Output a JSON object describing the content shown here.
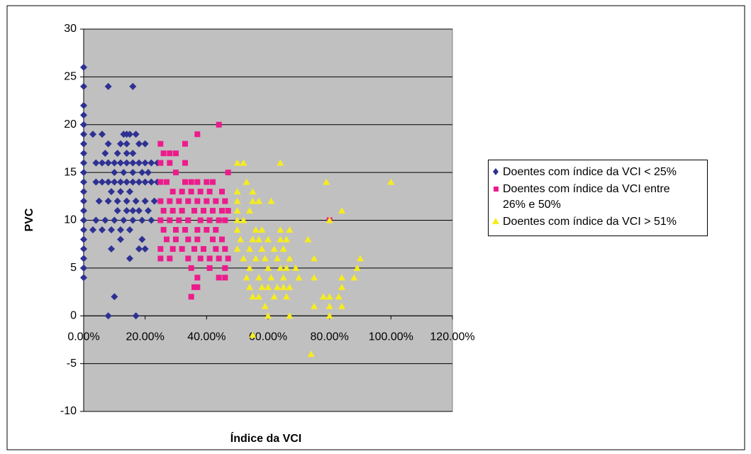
{
  "chart_data": {
    "type": "scatter",
    "x_label": "Índice da VCI",
    "y_label": "PVC",
    "xlim": [
      0,
      120
    ],
    "xticks": [
      {
        "value": 0,
        "label": "0.00%"
      },
      {
        "value": 20,
        "label": "20.00%"
      },
      {
        "value": 40,
        "label": "40.00%"
      },
      {
        "value": 60,
        "label": "60.00%"
      },
      {
        "value": 80,
        "label": "80.00%"
      },
      {
        "value": 100,
        "label": "100.00%"
      },
      {
        "value": 120,
        "label": "120.00%"
      }
    ],
    "ylim": [
      -10,
      30
    ],
    "yticks": [
      -10,
      -5,
      0,
      5,
      10,
      15,
      20,
      25,
      30
    ],
    "grid": true,
    "legend": "right",
    "series": [
      {
        "name": "Doentes com índice da VCI < 25%",
        "color": "#2e3192",
        "marker": "diamond",
        "x": [
          0,
          0,
          0,
          0,
          0,
          0,
          0,
          0,
          0,
          0,
          0,
          0,
          0,
          0,
          0,
          0,
          0,
          0,
          0,
          0,
          0,
          8,
          16,
          3,
          6,
          4,
          6,
          8,
          10,
          12,
          14,
          16,
          18,
          20,
          22,
          24,
          4,
          6,
          8,
          10,
          12,
          14,
          16,
          18,
          20,
          22,
          24,
          5,
          8,
          11,
          14,
          17,
          20,
          23,
          4,
          7,
          10,
          13,
          16,
          19,
          22,
          6,
          9,
          12,
          15,
          18,
          20,
          9,
          12,
          15,
          13,
          14,
          15,
          17,
          12,
          14,
          18,
          20,
          7,
          11,
          14,
          16,
          8,
          10,
          13,
          16,
          19,
          21,
          9,
          12,
          15,
          18,
          11,
          14,
          16,
          21,
          10,
          8,
          17,
          3,
          19
        ],
        "y": [
          4,
          5,
          6,
          7,
          8,
          9,
          10,
          11,
          12,
          13,
          14,
          15,
          16,
          17,
          18,
          19,
          20,
          21,
          22,
          24,
          26,
          24,
          24,
          19,
          19,
          16,
          16,
          16,
          16,
          16,
          16,
          16,
          16,
          16,
          16,
          16,
          14,
          14,
          14,
          14,
          14,
          14,
          14,
          14,
          14,
          14,
          14,
          12,
          12,
          12,
          12,
          12,
          12,
          12,
          10,
          10,
          10,
          10,
          10,
          10,
          10,
          9,
          9,
          9,
          9,
          7,
          7,
          7,
          8,
          6,
          19,
          19,
          19,
          19,
          18,
          18,
          18,
          18,
          17,
          17,
          17,
          17,
          18,
          15,
          15,
          15,
          15,
          15,
          13,
          13,
          13,
          11,
          11,
          11,
          11,
          11,
          2,
          0,
          0,
          9,
          8
        ]
      },
      {
        "name": "Doentes com índice da VCI entre 26% e 50%",
        "color": "#ec1c8c",
        "marker": "square",
        "x": [
          25,
          26,
          28,
          30,
          33,
          37,
          44,
          25,
          28,
          33,
          30,
          47,
          25,
          27,
          33,
          35,
          37,
          40,
          42,
          29,
          32,
          35,
          38,
          41,
          45,
          25,
          28,
          31,
          34,
          37,
          40,
          43,
          46,
          26,
          29,
          32,
          36,
          39,
          42,
          45,
          47,
          25,
          28,
          31,
          34,
          38,
          41,
          44,
          46,
          26,
          30,
          33,
          37,
          40,
          43,
          27,
          30,
          34,
          37,
          42,
          45,
          25,
          29,
          32,
          36,
          39,
          43,
          46,
          25,
          28,
          34,
          38,
          41,
          44,
          47,
          35,
          41,
          46,
          44,
          46,
          37,
          36,
          37,
          35,
          80
        ],
        "y": [
          18,
          17,
          17,
          17,
          18,
          19,
          20,
          16,
          16,
          16,
          15,
          15,
          14,
          14,
          14,
          14,
          14,
          14,
          14,
          13,
          13,
          13,
          13,
          13,
          13,
          12,
          12,
          12,
          12,
          12,
          12,
          12,
          12,
          11,
          11,
          11,
          11,
          11,
          11,
          11,
          11,
          10,
          10,
          10,
          10,
          10,
          10,
          10,
          10,
          9,
          9,
          9,
          9,
          9,
          9,
          8,
          8,
          8,
          8,
          8,
          8,
          7,
          7,
          7,
          7,
          7,
          7,
          7,
          6,
          6,
          6,
          6,
          6,
          6,
          6,
          5,
          5,
          5,
          4,
          4,
          4,
          3,
          3,
          2,
          10
        ]
      },
      {
        "name": "Doentes com índice da VCI > 51%",
        "color": "#f5ec1e",
        "marker": "triangle",
        "x": [
          50,
          52,
          64,
          79,
          100,
          53,
          55,
          50,
          55,
          57,
          61,
          50,
          84,
          50,
          54,
          50,
          52,
          80,
          50,
          56,
          58,
          64,
          67,
          51,
          55,
          57,
          60,
          64,
          66,
          73,
          50,
          54,
          58,
          62,
          65,
          52,
          56,
          59,
          63,
          67,
          75,
          90,
          54,
          60,
          64,
          66,
          69,
          89,
          53,
          57,
          61,
          65,
          70,
          75,
          84,
          88,
          54,
          58,
          60,
          63,
          65,
          67,
          84,
          55,
          57,
          62,
          66,
          78,
          80,
          83,
          59,
          75,
          80,
          84,
          60,
          67,
          80,
          55,
          74
        ],
        "y": [
          16,
          16,
          16,
          14,
          14,
          14,
          13,
          13,
          12,
          12,
          12,
          12,
          11,
          11,
          11,
          10,
          10,
          10,
          9,
          9,
          9,
          9,
          9,
          8,
          8,
          8,
          8,
          8,
          8,
          8,
          7,
          7,
          7,
          7,
          7,
          6,
          6,
          6,
          6,
          6,
          6,
          6,
          5,
          5,
          5,
          5,
          5,
          5,
          4,
          4,
          4,
          4,
          4,
          4,
          4,
          4,
          3,
          3,
          3,
          3,
          3,
          3,
          3,
          2,
          2,
          2,
          2,
          2,
          2,
          2,
          1,
          1,
          1,
          1,
          0,
          0,
          0,
          -2,
          -4
        ]
      }
    ]
  }
}
